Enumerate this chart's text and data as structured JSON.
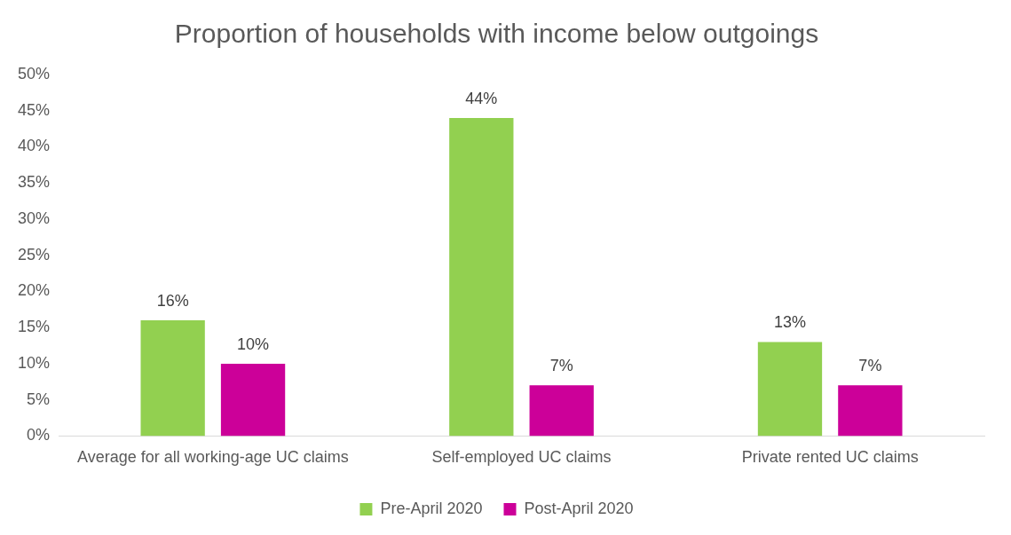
{
  "chart_data": {
    "type": "bar",
    "title": "Proportion of households with income below outgoings",
    "categories": [
      "Average for all working-age UC claims",
      "Self-employed UC claims",
      "Private rented UC claims"
    ],
    "series": [
      {
        "name": "Pre-April 2020",
        "color": "#92d050",
        "values": [
          16,
          44,
          13
        ],
        "value_labels": [
          "16%",
          "44%",
          "13%"
        ]
      },
      {
        "name": "Post-April 2020",
        "color": "#cc0099",
        "values": [
          10,
          7,
          7
        ],
        "value_labels": [
          "10%",
          "7%",
          "7%"
        ]
      }
    ],
    "ylim": [
      0,
      50
    ],
    "yticks": [
      {
        "value": 0,
        "label": "0%"
      },
      {
        "value": 5,
        "label": "5%"
      },
      {
        "value": 10,
        "label": "10%"
      },
      {
        "value": 15,
        "label": "15%"
      },
      {
        "value": 20,
        "label": "20%"
      },
      {
        "value": 25,
        "label": "25%"
      },
      {
        "value": 30,
        "label": "30%"
      },
      {
        "value": 35,
        "label": "35%"
      },
      {
        "value": 40,
        "label": "40%"
      },
      {
        "value": 45,
        "label": "45%"
      },
      {
        "value": 50,
        "label": "50%"
      }
    ],
    "grid": false,
    "legend": "bottom"
  }
}
